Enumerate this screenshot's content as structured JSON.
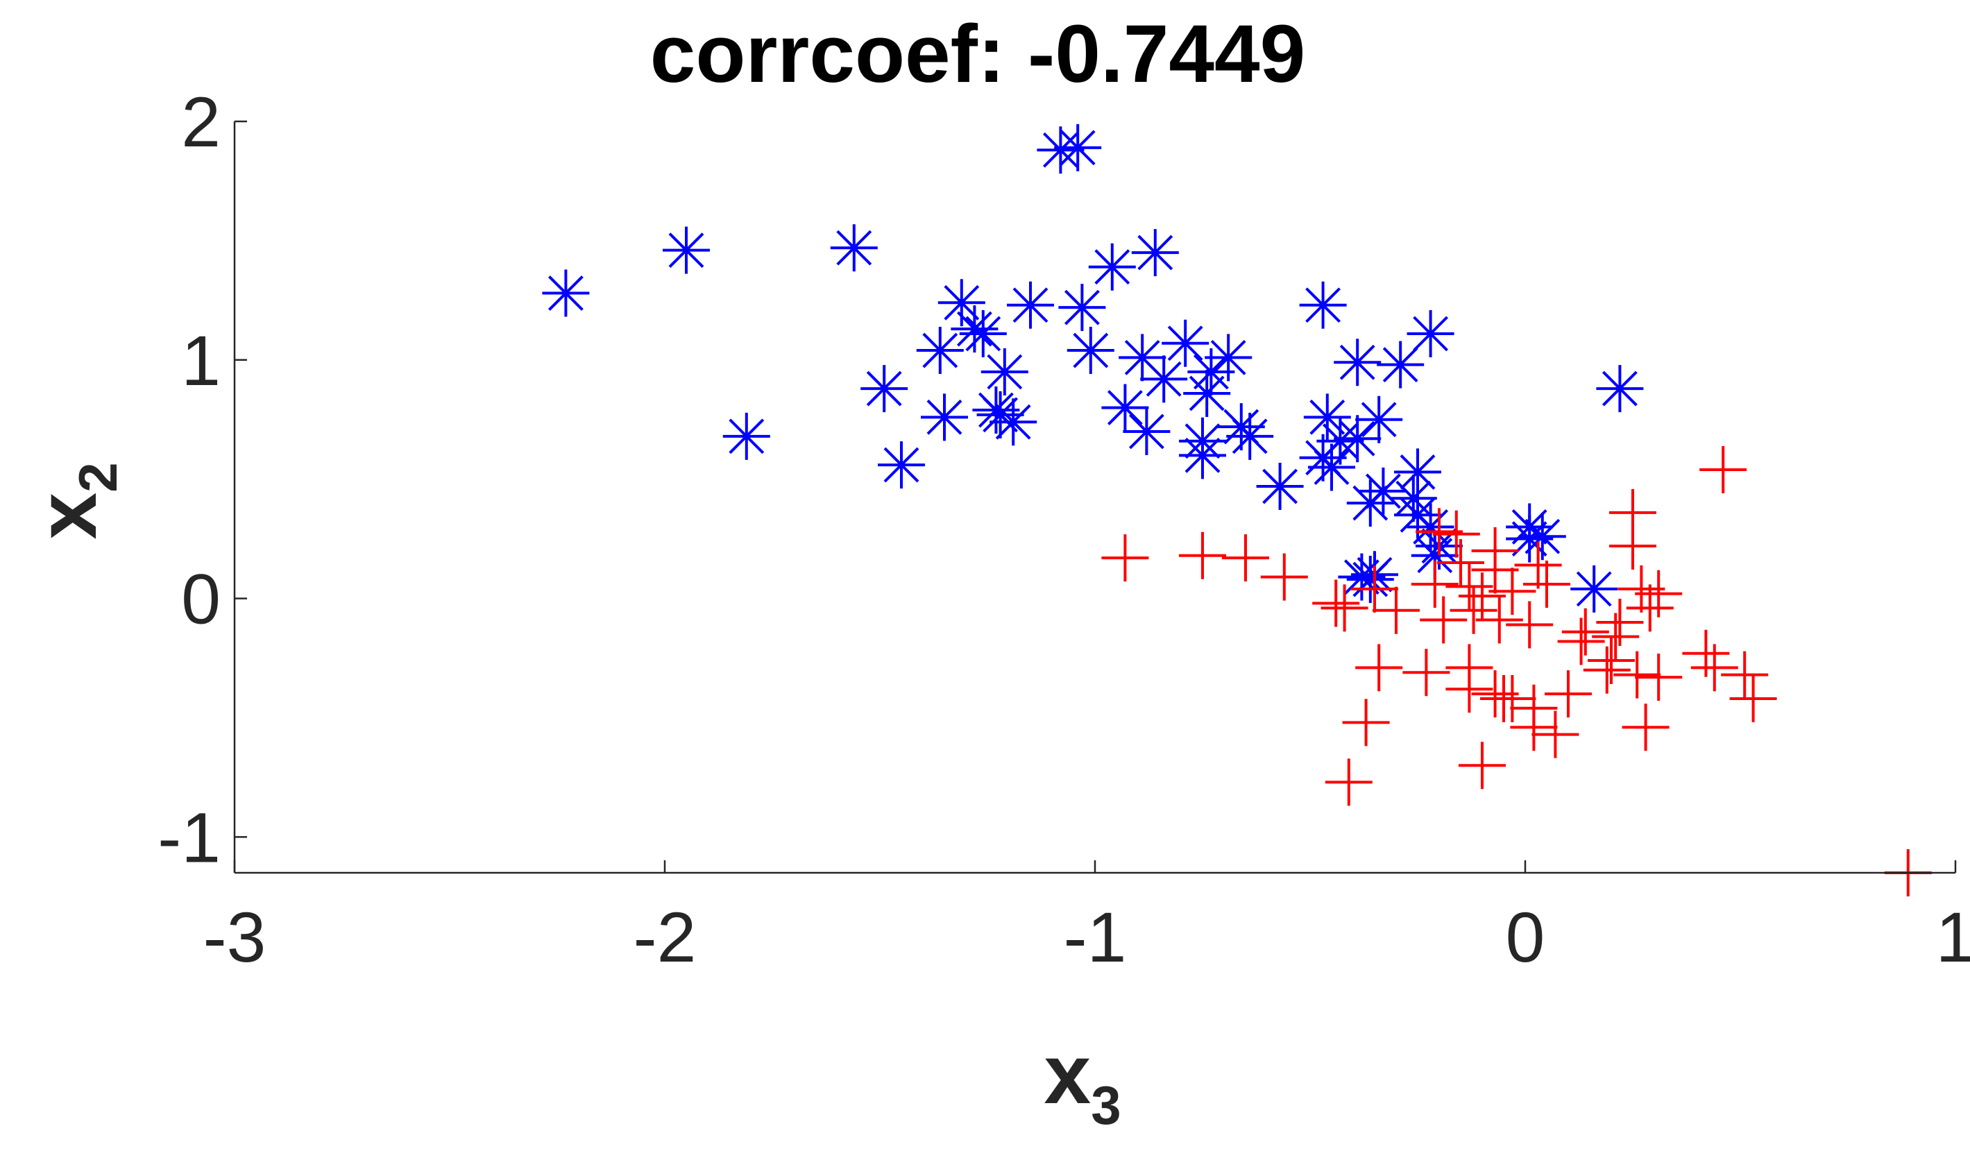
{
  "chart_data": {
    "type": "scatter",
    "title": "corrcoef: -0.7449",
    "xlabel": "x",
    "xlabel_sub": "3",
    "ylabel": "x",
    "ylabel_sub": "2",
    "xlim": [
      -3,
      1
    ],
    "ylim": [
      -1.15,
      2
    ],
    "xticks": [
      -3,
      -2,
      -1,
      0,
      1
    ],
    "yticks": [
      -1,
      0,
      1,
      2
    ],
    "xtick_labels": [
      "-3",
      "-2",
      "-1",
      "0",
      "1"
    ],
    "ytick_labels": [
      "-1",
      "0",
      "1",
      "2"
    ],
    "grid": false,
    "series": [
      {
        "marker": "asterisk",
        "color": "#0000ff",
        "points": [
          [
            -1.08,
            1.88
          ],
          [
            -1.04,
            1.89
          ],
          [
            -2.23,
            1.28
          ],
          [
            -1.95,
            1.46
          ],
          [
            -1.56,
            1.47
          ],
          [
            -0.86,
            1.45
          ],
          [
            -0.96,
            1.39
          ],
          [
            -1.31,
            1.24
          ],
          [
            -1.15,
            1.23
          ],
          [
            -1.03,
            1.22
          ],
          [
            -1.28,
            1.13
          ],
          [
            -1.26,
            1.11
          ],
          [
            -1.36,
            1.04
          ],
          [
            -1.01,
            1.04
          ],
          [
            -0.79,
            1.07
          ],
          [
            -0.89,
            1.01
          ],
          [
            -0.69,
            1.01
          ],
          [
            -0.73,
            0.95
          ],
          [
            -1.21,
            0.95
          ],
          [
            -1.49,
            0.88
          ],
          [
            -0.84,
            0.92
          ],
          [
            -0.74,
            0.86
          ],
          [
            -1.23,
            0.79
          ],
          [
            -0.93,
            0.8
          ],
          [
            -1.35,
            0.76
          ],
          [
            -1.19,
            0.74
          ],
          [
            -1.22,
            0.77
          ],
          [
            -0.88,
            0.7
          ],
          [
            -0.66,
            0.72
          ],
          [
            -0.75,
            0.66
          ],
          [
            -0.64,
            0.68
          ],
          [
            -1.81,
            0.68
          ],
          [
            -0.75,
            0.6
          ],
          [
            -1.45,
            0.56
          ],
          [
            -0.57,
            0.47
          ],
          [
            -0.47,
            1.23
          ],
          [
            -0.39,
            0.99
          ],
          [
            -0.29,
            0.98
          ],
          [
            -0.22,
            1.11
          ],
          [
            0.22,
            0.88
          ],
          [
            -0.46,
            0.76
          ],
          [
            -0.34,
            0.75
          ],
          [
            -0.43,
            0.66
          ],
          [
            -0.47,
            0.59
          ],
          [
            -0.39,
            0.67
          ],
          [
            -0.45,
            0.55
          ],
          [
            -0.25,
            0.53
          ],
          [
            -0.33,
            0.45
          ],
          [
            -0.36,
            0.4
          ],
          [
            -0.26,
            0.42
          ],
          [
            -0.25,
            0.35
          ],
          [
            -0.22,
            0.3
          ],
          [
            -0.2,
            0.22
          ],
          [
            -0.21,
            0.18
          ],
          [
            0.01,
            0.3
          ],
          [
            0.01,
            0.25
          ],
          [
            0.04,
            0.26
          ],
          [
            -0.35,
            0.1
          ],
          [
            -0.36,
            0.08
          ],
          [
            -0.38,
            0.09
          ],
          [
            0.16,
            0.04
          ]
        ]
      },
      {
        "marker": "plus",
        "color": "#ff0000",
        "points": [
          [
            -0.93,
            0.17
          ],
          [
            -0.75,
            0.18
          ],
          [
            -0.65,
            0.17
          ],
          [
            -0.56,
            0.09
          ],
          [
            -0.44,
            -0.02
          ],
          [
            -0.42,
            -0.04
          ],
          [
            -0.35,
            0.04
          ],
          [
            -0.3,
            -0.05
          ],
          [
            -0.21,
            0.06
          ],
          [
            -0.2,
            0.28
          ],
          [
            -0.16,
            0.27
          ],
          [
            -0.15,
            0.15
          ],
          [
            -0.13,
            0.05
          ],
          [
            -0.1,
            0.01
          ],
          [
            -0.12,
            -0.05
          ],
          [
            -0.19,
            -0.09
          ],
          [
            -0.07,
            0.2
          ],
          [
            -0.07,
            0.12
          ],
          [
            -0.03,
            0.03
          ],
          [
            0.03,
            0.14
          ],
          [
            0.05,
            0.06
          ],
          [
            -0.06,
            -0.09
          ],
          [
            0.01,
            -0.11
          ],
          [
            0.25,
            0.36
          ],
          [
            0.25,
            0.22
          ],
          [
            0.46,
            0.54
          ],
          [
            0.27,
            0.04
          ],
          [
            0.29,
            -0.04
          ],
          [
            0.31,
            0.02
          ],
          [
            0.14,
            -0.14
          ],
          [
            0.21,
            -0.16
          ],
          [
            0.22,
            -0.1
          ],
          [
            0.13,
            -0.18
          ],
          [
            0.2,
            -0.26
          ],
          [
            0.26,
            -0.32
          ],
          [
            0.19,
            -0.3
          ],
          [
            0.31,
            -0.33
          ],
          [
            0.42,
            -0.23
          ],
          [
            0.44,
            -0.29
          ],
          [
            0.51,
            -0.32
          ],
          [
            0.53,
            -0.42
          ],
          [
            -0.34,
            -0.29
          ],
          [
            -0.23,
            -0.31
          ],
          [
            -0.13,
            -0.29
          ],
          [
            -0.13,
            -0.38
          ],
          [
            -0.07,
            -0.4
          ],
          [
            -0.05,
            -0.42
          ],
          [
            -0.03,
            -0.42
          ],
          [
            0.02,
            -0.46
          ],
          [
            0.02,
            -0.54
          ],
          [
            0.07,
            -0.57
          ],
          [
            0.1,
            -0.4
          ],
          [
            0.28,
            -0.54
          ],
          [
            -0.37,
            -0.52
          ],
          [
            -0.41,
            -0.77
          ],
          [
            -0.1,
            -0.7
          ],
          [
            0.89,
            -1.15
          ]
        ]
      }
    ]
  }
}
